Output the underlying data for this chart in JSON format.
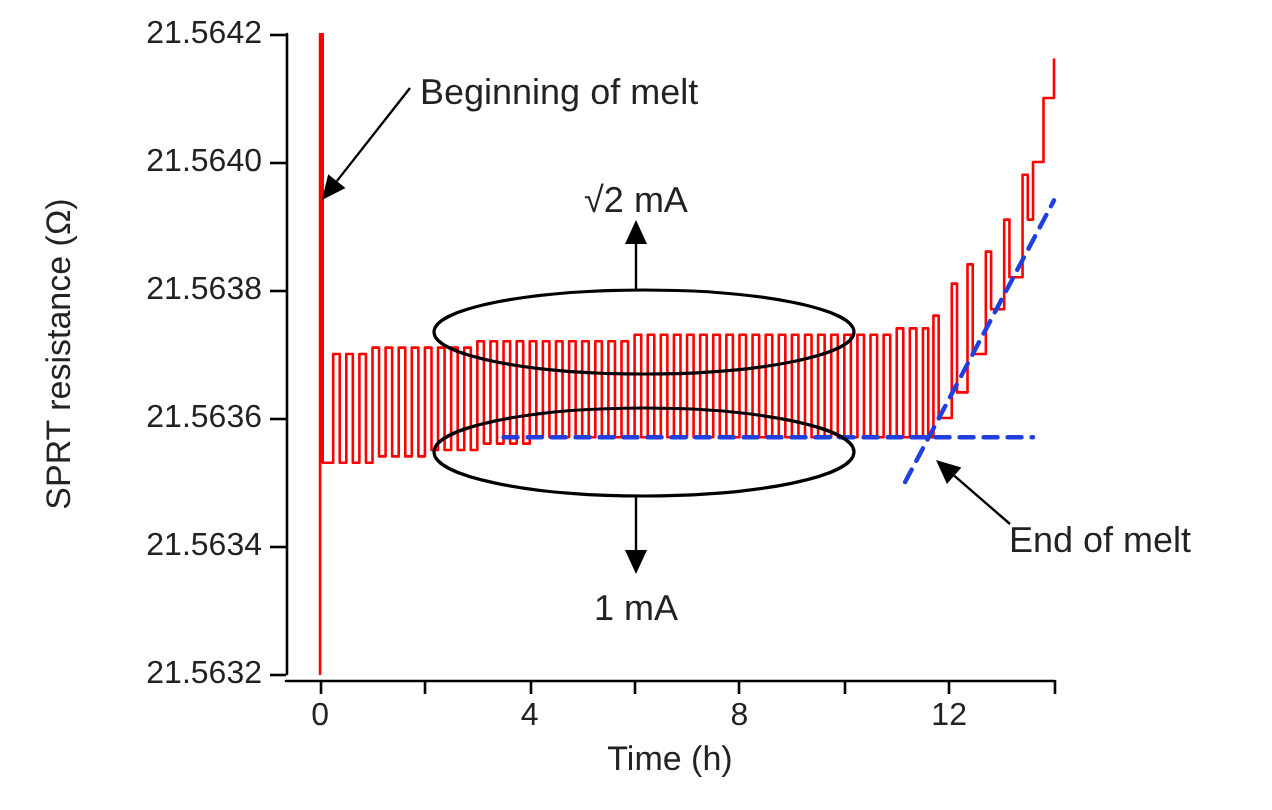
{
  "chart_data": {
    "type": "step",
    "xlabel": "Time (h)",
    "ylabel": "SPRT resistance (Ω)",
    "xlim": [
      -0.65,
      14
    ],
    "xticks": [
      0,
      {
        "value": 2,
        "label": null
      },
      4,
      {
        "value": 6,
        "label": null
      },
      8,
      {
        "value": 10,
        "label": null
      },
      12,
      {
        "value": 14,
        "label": null
      }
    ],
    "ylim": [
      21.5632,
      21.5642
    ],
    "yticks": [
      21.5632,
      21.5634,
      21.5636,
      21.5638,
      {
        "value": 21.564,
        "label": "21.5640"
      },
      21.5642
    ],
    "marker": "none",
    "series": [
      {
        "color": "#ff0000",
        "x": [
          0,
          0,
          0.05,
          0.25,
          0.375,
          0.5,
          0.625,
          0.75,
          0.875,
          1,
          1.125,
          1.25,
          1.375,
          1.5,
          1.625,
          1.75,
          1.875,
          2,
          2.125,
          2.25,
          2.375,
          2.5,
          2.625,
          2.75,
          2.875,
          3,
          3.125,
          3.25,
          3.375,
          3.5,
          3.625,
          3.75,
          3.875,
          4,
          4.125,
          4.25,
          4.375,
          4.5,
          4.625,
          4.75,
          4.875,
          5,
          5.125,
          5.25,
          5.375,
          5.5,
          5.625,
          5.75,
          5.875,
          6,
          6.125,
          6.25,
          6.375,
          6.5,
          6.625,
          6.75,
          6.875,
          7,
          7.125,
          7.25,
          7.375,
          7.5,
          7.625,
          7.75,
          7.875,
          8,
          8.125,
          8.25,
          8.375,
          8.5,
          8.625,
          8.75,
          8.875,
          9,
          9.125,
          9.25,
          9.375,
          9.5,
          9.625,
          9.75,
          9.875,
          10,
          10.125,
          10.25,
          10.375,
          10.5,
          10.625,
          10.75,
          10.875,
          11,
          11.125,
          11.25,
          11.375,
          11.5,
          11.6,
          11.7,
          11.8,
          12.05,
          12.15,
          12.35,
          12.45,
          12.7,
          12.8,
          13.05,
          13.15,
          13.4,
          13.5,
          13.6,
          13.8,
          14
        ],
        "values": [
          21.5632,
          21.5642,
          21.56353,
          21.5637,
          21.56353,
          21.5637,
          21.56353,
          21.5637,
          21.56353,
          21.56371,
          21.56354,
          21.56371,
          21.56354,
          21.56371,
          21.56354,
          21.56371,
          21.56354,
          21.56371,
          21.56355,
          21.56371,
          21.56355,
          21.56371,
          21.56355,
          21.56371,
          21.56355,
          21.56372,
          21.56356,
          21.56372,
          21.56356,
          21.56372,
          21.56356,
          21.56372,
          21.56356,
          21.56372,
          21.56357,
          21.56372,
          21.56357,
          21.56372,
          21.56357,
          21.56372,
          21.56357,
          21.56372,
          21.56357,
          21.56372,
          21.56357,
          21.56372,
          21.56357,
          21.56372,
          21.56357,
          21.56373,
          21.56357,
          21.56373,
          21.56357,
          21.56373,
          21.56357,
          21.56373,
          21.56357,
          21.56373,
          21.56357,
          21.56373,
          21.56357,
          21.56373,
          21.56357,
          21.56373,
          21.56357,
          21.56373,
          21.56357,
          21.56373,
          21.56357,
          21.56373,
          21.56357,
          21.56373,
          21.56357,
          21.56373,
          21.56357,
          21.56373,
          21.56357,
          21.56373,
          21.56357,
          21.56373,
          21.56357,
          21.56373,
          21.56357,
          21.56373,
          21.56357,
          21.56373,
          21.56357,
          21.56373,
          21.56357,
          21.56374,
          21.56357,
          21.56374,
          21.56357,
          21.56374,
          21.56357,
          21.56376,
          21.5636,
          21.56381,
          21.56364,
          21.56384,
          21.5637,
          21.56386,
          21.56377,
          21.56391,
          21.56382,
          21.56398,
          21.56391,
          21.564,
          21.5641,
          21.56416
        ]
      },
      {
        "type": "line",
        "color": "#1f3fe0",
        "line_style": "dashed",
        "x": [
          3.5,
          13.6
        ],
        "values": [
          21.56357,
          21.56357
        ]
      },
      {
        "type": "line",
        "color": "#1f3fe0",
        "line_style": "dashed",
        "x": [
          11.16,
          14
        ],
        "values": [
          21.5635,
          21.56394
        ]
      }
    ],
    "annotations": [
      "Beginning of melt",
      "√2 mA",
      "1 mA",
      "End of melt"
    ]
  }
}
